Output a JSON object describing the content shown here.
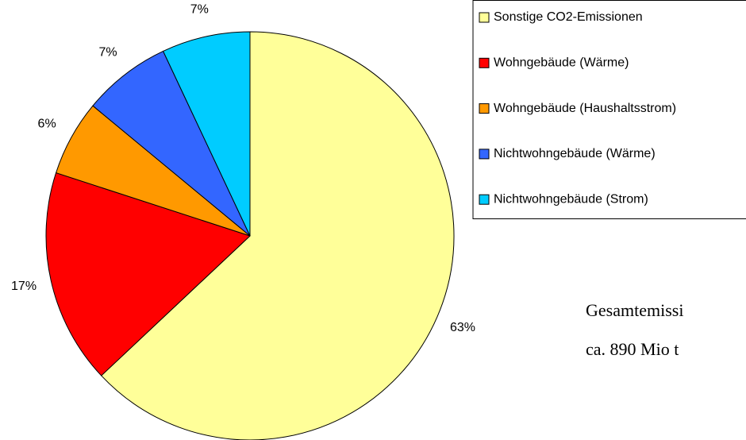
{
  "chart_data": {
    "type": "pie",
    "categories": [
      "Sonstige CO2-Emissionen",
      "Wohngebäude (Wärme)",
      "Wohngebäude (Haushaltsstrom)",
      "Nichtwohngebäude (Wärme)",
      "Nichtwohngebäude (Strom)"
    ],
    "values": [
      63,
      17,
      6,
      7,
      7
    ],
    "value_labels": [
      "63%",
      "17%",
      "6%",
      "7%",
      "7%"
    ],
    "colors": [
      "#ffff99",
      "#ff0000",
      "#ff9900",
      "#3366ff",
      "#00ccff"
    ],
    "legend": "upper right",
    "annotations": [
      "Gesamtemissi",
      "ca. 890 Mio t"
    ]
  }
}
